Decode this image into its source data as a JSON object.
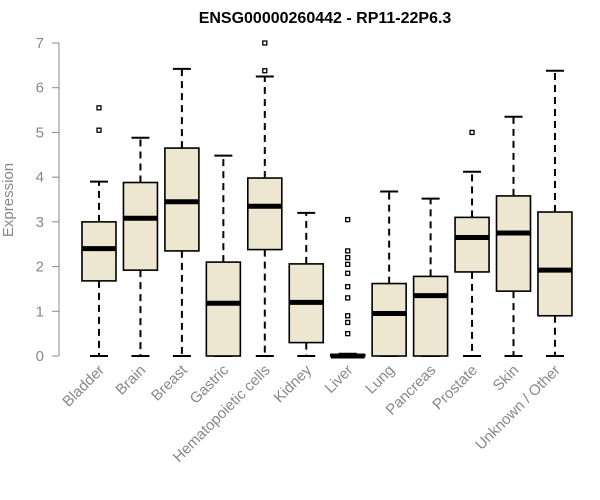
{
  "chart_data": {
    "type": "boxplot",
    "title": "ENSG00000260442 - RP11-22P6.3",
    "xlabel": "",
    "ylabel": "Expression",
    "ylim": [
      0,
      7
    ],
    "yticks": [
      0,
      1,
      2,
      3,
      4,
      5,
      6,
      7
    ],
    "box_fill": "#ede6d0",
    "categories": [
      "Bladder",
      "Brain",
      "Breast",
      "Gastric",
      "Hematopoietic cells",
      "Kidney",
      "Liver",
      "Lung",
      "Pancreas",
      "Prostate",
      "Skin",
      "Unknown / Other"
    ],
    "boxes": [
      {
        "min": 0.0,
        "q1": 1.68,
        "median": 2.4,
        "q3": 3.0,
        "max": 3.9,
        "outliers": [
          5.05,
          5.55
        ]
      },
      {
        "min": 0.0,
        "q1": 1.92,
        "median": 3.08,
        "q3": 3.88,
        "max": 4.88,
        "outliers": []
      },
      {
        "min": 0.0,
        "q1": 2.35,
        "median": 3.45,
        "q3": 4.65,
        "max": 6.42,
        "outliers": []
      },
      {
        "min": 0.0,
        "q1": 0.0,
        "median": 1.18,
        "q3": 2.1,
        "max": 4.48,
        "outliers": []
      },
      {
        "min": 0.0,
        "q1": 2.38,
        "median": 3.35,
        "q3": 3.98,
        "max": 6.25,
        "outliers": [
          6.38,
          7.0
        ]
      },
      {
        "min": 0.0,
        "q1": 0.3,
        "median": 1.2,
        "q3": 2.06,
        "max": 3.2,
        "outliers": []
      },
      {
        "min": 0.0,
        "q1": 0.0,
        "median": 0.0,
        "q3": 0.03,
        "max": 0.05,
        "outliers": [
          0.5,
          0.75,
          0.9,
          1.3,
          1.55,
          1.85,
          2.05,
          2.2,
          2.35,
          3.05
        ]
      },
      {
        "min": 0.0,
        "q1": 0.0,
        "median": 0.95,
        "q3": 1.62,
        "max": 3.68,
        "outliers": []
      },
      {
        "min": 0.0,
        "q1": 0.0,
        "median": 1.35,
        "q3": 1.78,
        "max": 3.52,
        "outliers": []
      },
      {
        "min": 0.0,
        "q1": 1.88,
        "median": 2.65,
        "q3": 3.1,
        "max": 4.12,
        "outliers": [
          5.0
        ]
      },
      {
        "min": 0.0,
        "q1": 1.45,
        "median": 2.75,
        "q3": 3.58,
        "max": 5.35,
        "outliers": []
      },
      {
        "min": 0.0,
        "q1": 0.9,
        "median": 1.92,
        "q3": 3.22,
        "max": 6.38,
        "outliers": []
      }
    ]
  }
}
